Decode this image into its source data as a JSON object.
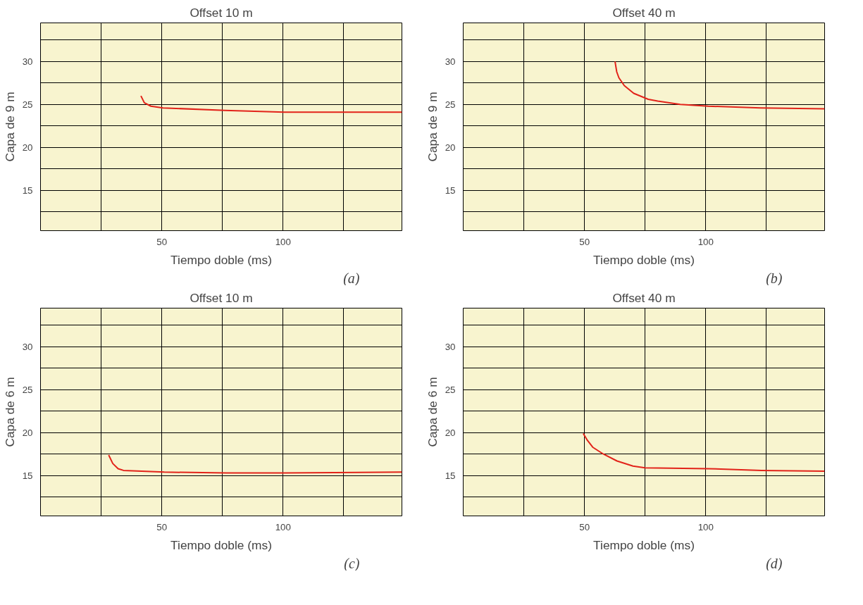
{
  "chart_data": [
    {
      "type": "line",
      "title": "Offset 10 m",
      "xlabel": "Tiempo doble (ms)",
      "ylabel": "Capa de 9 m",
      "annotations": [
        "(a)"
      ],
      "x": [
        41.4,
        42.8,
        45.5,
        50.5,
        76,
        100.5,
        149
      ],
      "series": [
        {
          "color": "#e2231a",
          "values": [
            26.0,
            25.2,
            24.8,
            24.6,
            24.3,
            24.1,
            24.1
          ]
        }
      ],
      "xlim": [
        0,
        149
      ],
      "ylim": [
        10.3,
        34.5
      ],
      "xticks": [
        {
          "value": 25,
          "label": null
        },
        50,
        {
          "value": 75,
          "label": null
        },
        100,
        {
          "value": 125,
          "label": null
        }
      ],
      "yticks": [
        {
          "value": 12.5,
          "label": null
        },
        15,
        {
          "value": 17.5,
          "label": null
        },
        20,
        {
          "value": 22.5,
          "label": null
        },
        25,
        {
          "value": 27.5,
          "label": null
        },
        30,
        {
          "value": 32.5,
          "label": null
        }
      ],
      "grid": true,
      "marker": "none",
      "line_style": "solid"
    },
    {
      "type": "line",
      "title": "Offset 40 m",
      "xlabel": "Tiempo doble (ms)",
      "ylabel": "Capa de 9 m",
      "annotations": [
        "(b)"
      ],
      "x": [
        62.6,
        63.3,
        64.2,
        66.4,
        70.3,
        76.3,
        80.2,
        89.5,
        101,
        122.6,
        149
      ],
      "series": [
        {
          "color": "#e2231a",
          "values": [
            30,
            28.8,
            28.1,
            27.2,
            26.3,
            25.6,
            25.4,
            25.0,
            24.8,
            24.6,
            24.5
          ]
        }
      ],
      "xlim": [
        0,
        149
      ],
      "ylim": [
        10.3,
        34.5
      ],
      "xticks": [
        {
          "value": 25,
          "label": null
        },
        50,
        {
          "value": 75,
          "label": null
        },
        100,
        {
          "value": 125,
          "label": null
        }
      ],
      "yticks": [
        {
          "value": 12.5,
          "label": null
        },
        15,
        {
          "value": 17.5,
          "label": null
        },
        20,
        {
          "value": 22.5,
          "label": null
        },
        25,
        {
          "value": 27.5,
          "label": null
        },
        30,
        {
          "value": 32.5,
          "label": null
        }
      ],
      "grid": true,
      "marker": "none",
      "line_style": "solid"
    },
    {
      "type": "line",
      "title": "Offset 10 m",
      "xlabel": "Tiempo doble (ms)",
      "ylabel": "Capa de 6 m",
      "annotations": [
        "(c)"
      ],
      "x": [
        28.1,
        29.8,
        32,
        34.2,
        51,
        76.7,
        101,
        149
      ],
      "series": [
        {
          "color": "#e2231a",
          "values": [
            17.4,
            16.4,
            15.8,
            15.6,
            15.4,
            15.3,
            15.3,
            15.4
          ]
        }
      ],
      "xlim": [
        0,
        149
      ],
      "ylim": [
        10.3,
        34.5
      ],
      "xticks": [
        {
          "value": 25,
          "label": null
        },
        50,
        {
          "value": 75,
          "label": null
        },
        100,
        {
          "value": 125,
          "label": null
        }
      ],
      "yticks": [
        {
          "value": 12.5,
          "label": null
        },
        15,
        {
          "value": 17.5,
          "label": null
        },
        20,
        {
          "value": 22.5,
          "label": null
        },
        25,
        {
          "value": 27.5,
          "label": null
        },
        30,
        {
          "value": 32.5,
          "label": null
        }
      ],
      "grid": true,
      "marker": "none",
      "line_style": "solid"
    },
    {
      "type": "line",
      "title": "Offset 40 m",
      "xlabel": "Tiempo doble (ms)",
      "ylabel": "Capa de 6 m",
      "annotations": [
        "(d)"
      ],
      "x": [
        49.5,
        51.2,
        53.4,
        57.8,
        63.4,
        70,
        75,
        101.1,
        123,
        149
      ],
      "series": [
        {
          "color": "#e2231a",
          "values": [
            19.9,
            19.1,
            18.3,
            17.5,
            16.7,
            16.1,
            15.9,
            15.8,
            15.6,
            15.5
          ]
        }
      ],
      "xlim": [
        0,
        149
      ],
      "ylim": [
        10.3,
        34.5
      ],
      "xticks": [
        {
          "value": 25,
          "label": null
        },
        50,
        {
          "value": 75,
          "label": null
        },
        100,
        {
          "value": 125,
          "label": null
        }
      ],
      "yticks": [
        {
          "value": 12.5,
          "label": null
        },
        15,
        {
          "value": 17.5,
          "label": null
        },
        20,
        {
          "value": 22.5,
          "label": null
        },
        25,
        {
          "value": 27.5,
          "label": null
        },
        30,
        {
          "value": 32.5,
          "label": null
        }
      ],
      "grid": true,
      "marker": "none",
      "line_style": "solid"
    }
  ]
}
